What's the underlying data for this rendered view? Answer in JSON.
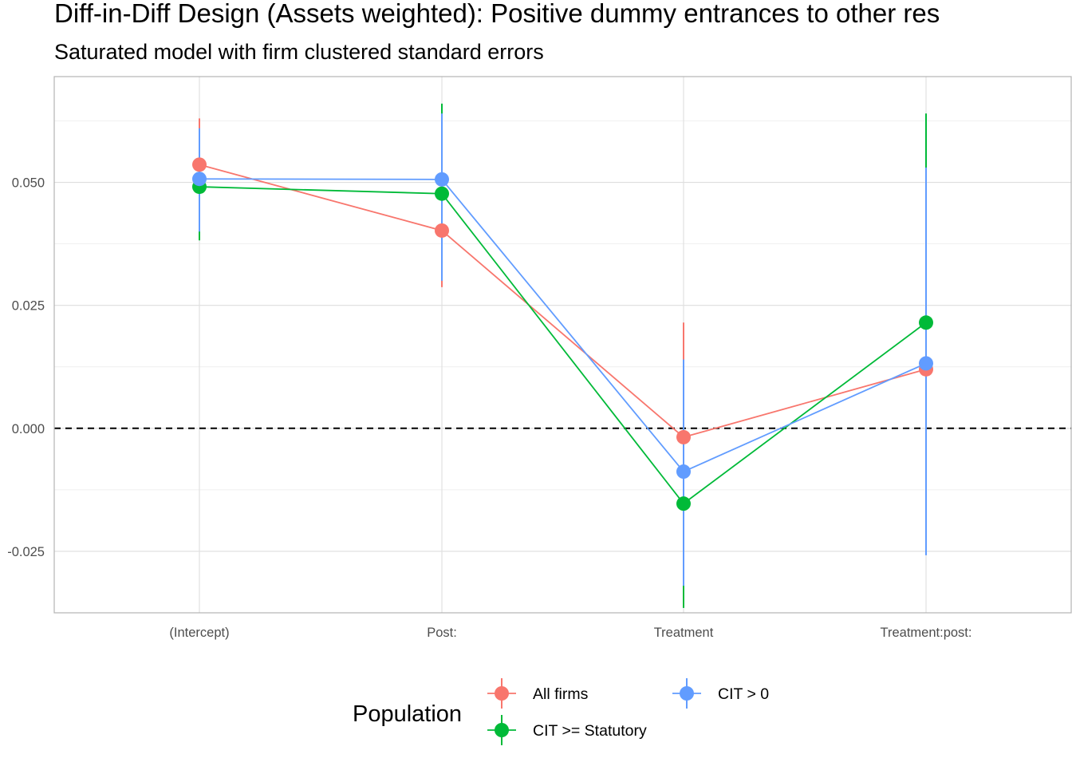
{
  "chart_data": {
    "type": "scatter",
    "title": "Diff-in-Diff Design (Assets weighted): Positive dummy entrances to other res",
    "subtitle": "Saturated model with firm clustered standard errors",
    "xlabel": "",
    "ylabel": "",
    "categories": [
      "(Intercept)",
      "Post:",
      "Treatment",
      "Treatment:post:"
    ],
    "ylim": [
      -0.0375,
      0.0715
    ],
    "yticks": [
      0.05,
      0.025,
      0.0,
      -0.025
    ],
    "ytick_labels": [
      "0.050",
      "0.025",
      "0.000",
      "-0.025"
    ],
    "reference_line": {
      "y": 0,
      "style": "dashed"
    },
    "grid": true,
    "legend": {
      "title": "Population",
      "position": "bottom"
    },
    "series": [
      {
        "name": "All firms",
        "color": "#F8766D",
        "values": [
          0.0536,
          0.0402,
          -0.0018,
          0.012
        ],
        "lower": [
          0.044,
          0.0287,
          -0.0253,
          0.005
        ],
        "upper": [
          0.063,
          0.0515,
          0.0215,
          0.019
        ]
      },
      {
        "name": "CIT >= Statutory",
        "color": "#00BA38",
        "values": [
          0.0491,
          0.0477,
          -0.0153,
          0.0215
        ],
        "lower": [
          0.0382,
          0.035,
          -0.0365,
          0.005
        ],
        "upper": [
          0.06,
          0.066,
          0.006,
          0.064
        ]
      },
      {
        "name": "CIT > 0",
        "color": "#619CFF",
        "values": [
          0.0507,
          0.0506,
          -0.0088,
          0.0132
        ],
        "lower": [
          0.04,
          0.03,
          -0.032,
          -0.0258
        ],
        "upper": [
          0.061,
          0.064,
          0.014,
          0.053
        ]
      }
    ]
  }
}
